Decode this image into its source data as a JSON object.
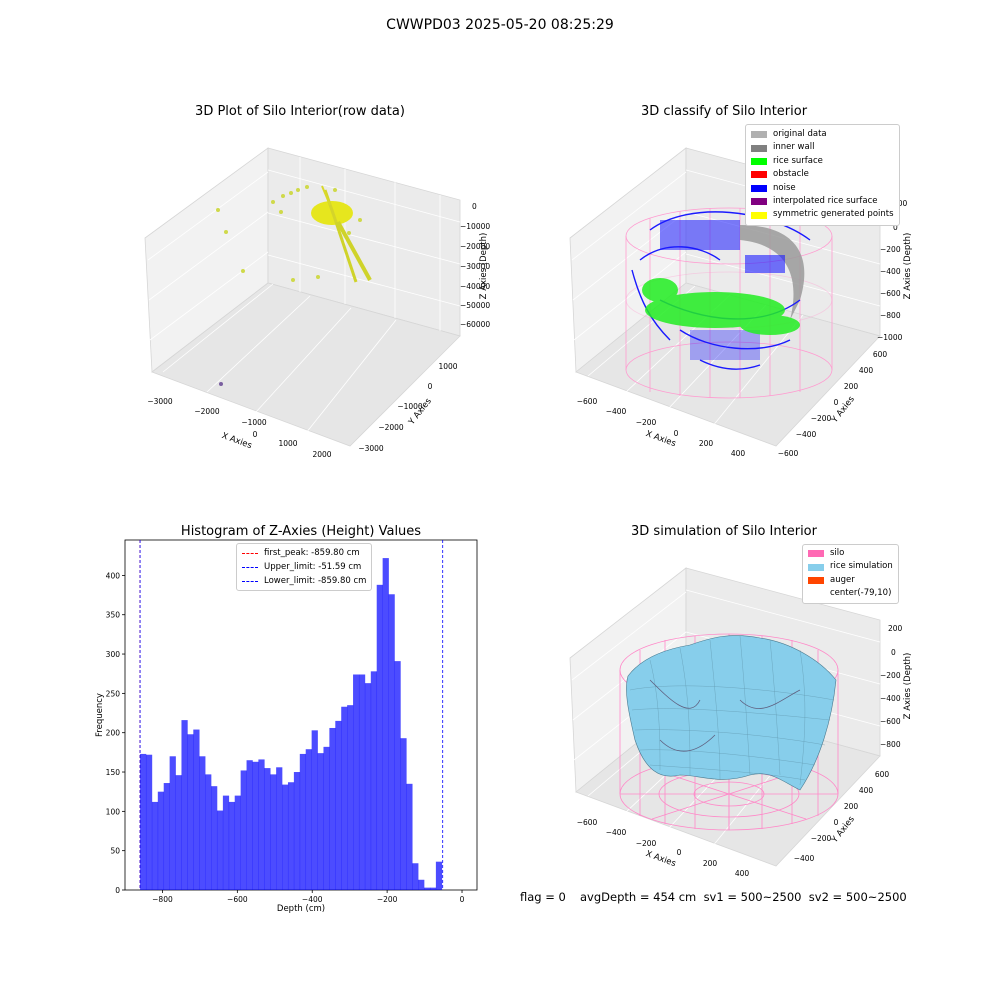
{
  "page": {
    "title": "CWWPD03 2025-05-20 08:25:29"
  },
  "panels": {
    "raw": {
      "title": "3D Plot of Silo Interior(row data)",
      "xlabel": "X Axies",
      "ylabel": "Y Axies",
      "zlabel": "Z Axies (Depth)",
      "x_ticks": [
        "−3000",
        "−2000",
        "−1000",
        "0",
        "1000",
        "2000"
      ],
      "y_ticks": [
        "1000",
        "0",
        "−1000",
        "−2000",
        "−3000"
      ],
      "z_ticks": [
        "0",
        "−10000",
        "−20000",
        "−30000",
        "−40000",
        "−50000",
        "−60000"
      ]
    },
    "classify": {
      "title": "3D classify of Silo Interior",
      "xlabel": "X Axies",
      "ylabel": "Y Axies",
      "zlabel": "Z Axies (Depth)",
      "x_ticks": [
        "−600",
        "−400",
        "−200",
        "0",
        "200",
        "400"
      ],
      "y_ticks": [
        "600",
        "400",
        "200",
        "0",
        "−200",
        "−400",
        "−600"
      ],
      "z_ticks": [
        "200",
        "0",
        "−200",
        "−400",
        "−600",
        "−800",
        "−1000"
      ],
      "legend": [
        {
          "label": "original data",
          "color": "#b0b0b0"
        },
        {
          "label": "inner wall",
          "color": "#808080"
        },
        {
          "label": "rice surface",
          "color": "#00ff00"
        },
        {
          "label": "obstacle",
          "color": "#ff0000"
        },
        {
          "label": "noise",
          "color": "#0000ff"
        },
        {
          "label": "interpolated rice surface",
          "color": "#800080"
        },
        {
          "label": "symmetric generated points",
          "color": "#ffff00"
        }
      ]
    },
    "simulation": {
      "title": "3D simulation of Silo Interior",
      "xlabel": "X Axies",
      "ylabel": "Y Axies",
      "zlabel": "Z Axies (Depth)",
      "x_ticks": [
        "−600",
        "−400",
        "−200",
        "0",
        "200",
        "400"
      ],
      "y_ticks": [
        "600",
        "400",
        "200",
        "0",
        "−200",
        "−400"
      ],
      "z_ticks": [
        "200",
        "0",
        "−200",
        "−400",
        "−600",
        "−800"
      ],
      "legend": [
        {
          "label": "silo",
          "color": "#ff69b4"
        },
        {
          "label": "rice simulation",
          "color": "#87ceeb"
        },
        {
          "label": "auger",
          "color": "#ff4500"
        },
        {
          "label": "center(-79,10)",
          "color": "#ffffff"
        }
      ]
    }
  },
  "footer": {
    "flag": "flag = 0",
    "avg": "avgDepth = 454 cm  sv1 = 500~2500  sv2 = 500~2500"
  },
  "chart_data": [
    {
      "type": "histogram",
      "title": "Histogram of Z-Axies (Height) Values",
      "xlabel": "Depth (cm)",
      "ylabel": "Frequency",
      "xlim": [
        -900,
        40
      ],
      "ylim": [
        0,
        445
      ],
      "x_ticks": [
        -800,
        -600,
        -400,
        -200,
        0
      ],
      "y_ticks": [
        0,
        50,
        100,
        150,
        200,
        250,
        300,
        350,
        400
      ],
      "bar_color": "#0000ff",
      "bin_start": -859.8,
      "bin_width": 15.8,
      "values": [
        173,
        172,
        112,
        125,
        136,
        170,
        146,
        216,
        198,
        204,
        170,
        147,
        132,
        101,
        120,
        112,
        120,
        152,
        165,
        163,
        166,
        155,
        147,
        156,
        134,
        137,
        150,
        173,
        179,
        203,
        174,
        182,
        206,
        215,
        233,
        235,
        274,
        274,
        263,
        278,
        388,
        422,
        376,
        291,
        193,
        135,
        34,
        13,
        3,
        3,
        36
      ],
      "vlines": [
        {
          "label": "first_peak: -859.80 cm",
          "x": -859.8,
          "color": "#ff0000"
        },
        {
          "label": "Upper_limit: -51.59 cm",
          "x": -51.59,
          "color": "#0000ff"
        },
        {
          "label": "Lower_limit: -859.80 cm",
          "x": -859.8,
          "color": "#0000ff"
        }
      ]
    }
  ]
}
